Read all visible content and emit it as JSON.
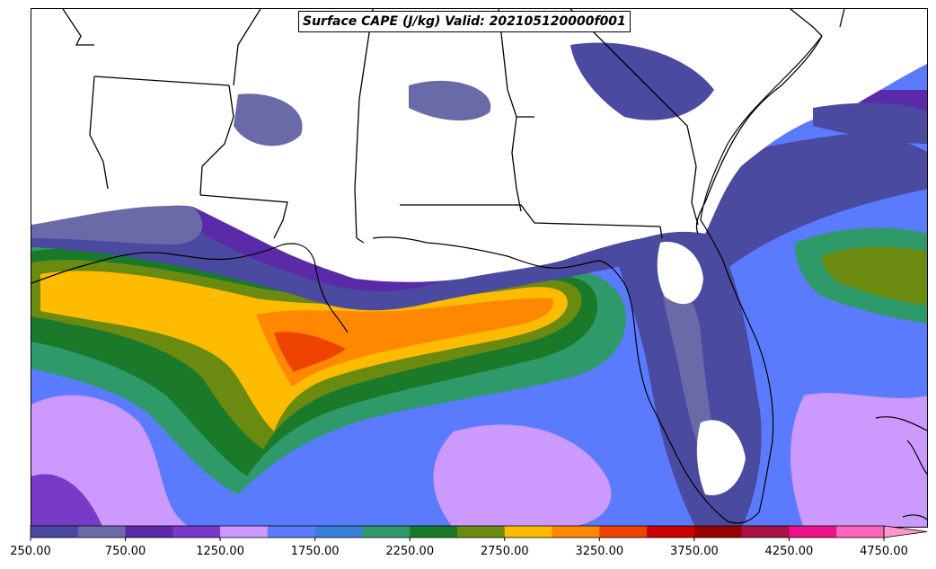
{
  "map": {
    "title": "Surface CAPE (J/kg) Valid: 202105120000f001"
  },
  "colorbar": {
    "bins": [
      {
        "low": 250,
        "color": "#4a4aa0"
      },
      {
        "low": 500,
        "color": "#6a6aa8"
      },
      {
        "low": 750,
        "color": "#5a2aa8"
      },
      {
        "low": 1000,
        "color": "#7a3ac8"
      },
      {
        "low": 1250,
        "color": "#cc99ff"
      },
      {
        "low": 1500,
        "color": "#5b7bff"
      },
      {
        "low": 1750,
        "color": "#3b7fd8"
      },
      {
        "low": 2000,
        "color": "#2e9a6a"
      },
      {
        "low": 2250,
        "color": "#1a7a2a"
      },
      {
        "low": 2500,
        "color": "#6a8a10"
      },
      {
        "low": 2750,
        "color": "#ffbb00"
      },
      {
        "low": 3000,
        "color": "#ff8800"
      },
      {
        "low": 3250,
        "color": "#ee4400"
      },
      {
        "low": 3500,
        "color": "#cc0000"
      },
      {
        "low": 3750,
        "color": "#990000"
      },
      {
        "low": 4000,
        "color": "#aa1144"
      },
      {
        "low": 4250,
        "color": "#ee1188"
      },
      {
        "low": 4500,
        "color": "#ff66bb"
      }
    ],
    "extend_max_color": "#ff99cc",
    "tick_labels": [
      "250.00",
      "750.00",
      "1250.00",
      "1750.00",
      "2250.00",
      "2750.00",
      "3250.00",
      "3750.00",
      "4250.00",
      "4750.00"
    ]
  }
}
